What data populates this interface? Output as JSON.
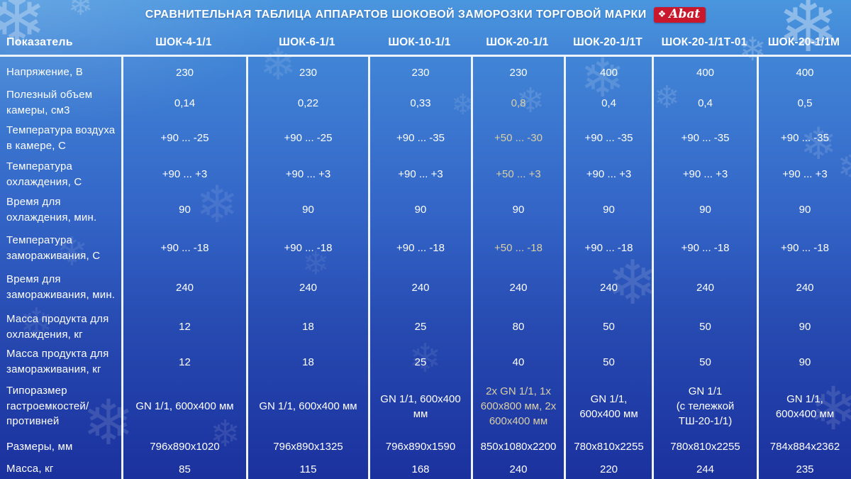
{
  "title": "СРАВНИТЕЛЬНАЯ ТАБЛИЦА АППАРАТОВ ШОКОВОЙ ЗАМОРОЗКИ ТОРГОВОЙ МАРКИ",
  "brand": {
    "label": "Abat",
    "mark_glyph": "❖"
  },
  "decor": {
    "snowflake_glyph": "❄"
  },
  "colors": {
    "accent_value": "#d9cfa6",
    "value_text": "#ffffff",
    "logo_red": "#c9182b",
    "grid_line": "#edf3fb",
    "bg_top": "#4a96de",
    "bg_bottom": "#1b319e"
  },
  "table": {
    "corner_label": "Показатель",
    "columns": [
      "ШОК-4-1/1",
      "ШОК-6-1/1",
      "ШОК-10-1/1",
      "ШОК-20-1/1",
      "ШОК-20-1/1Т",
      "ШОК-20-1/1Т-01",
      "ШОК-20-1/1М"
    ],
    "rows": [
      {
        "label": "Напряжение, В",
        "values": [
          "230",
          "230",
          "230",
          "230",
          "400",
          "400",
          "400"
        ],
        "accent_cols": []
      },
      {
        "label": "Полезный объем камеры, см3",
        "values": [
          "0,14",
          "0,22",
          "0,33",
          "0,8",
          "0,4",
          "0,4",
          "0,5"
        ],
        "accent_cols": [
          3
        ]
      },
      {
        "label": "Температура воздуха в камере, С",
        "values": [
          "+90 ... -25",
          "+90 ... -25",
          "+90 ... -35",
          "+50 ... -30",
          "+90 ... -35",
          "+90 ... -35",
          "+90 ... -35"
        ],
        "accent_cols": [
          3
        ]
      },
      {
        "label": "Температура охлаждения, С",
        "values": [
          "+90 ... +3",
          "+90 ... +3",
          "+90 ... +3",
          "+50 ... +3",
          "+90 ... +3",
          "+90 ... +3",
          "+90 ... +3"
        ],
        "accent_cols": [
          3
        ]
      },
      {
        "label": "Время для охлаждения, мин.",
        "values": [
          "90",
          "90",
          "90",
          "90",
          "90",
          "90",
          "90"
        ],
        "accent_cols": []
      },
      {
        "label": "Температура замораживания, С",
        "values": [
          "+90 ... -18",
          "+90 ... -18",
          "+90 ... -18",
          "+50 ... -18",
          "+90 ... -18",
          "+90 ... -18",
          "+90 ... -18"
        ],
        "accent_cols": [
          3
        ]
      },
      {
        "label": "Время для замораживания, мин.",
        "values": [
          "240",
          "240",
          "240",
          "240",
          "240",
          "240",
          "240"
        ],
        "accent_cols": []
      },
      {
        "label": "Масса продукта для охлаждения, кг",
        "values": [
          "12",
          "18",
          "25",
          "80",
          "50",
          "50",
          "90"
        ],
        "accent_cols": []
      },
      {
        "label": "Масса продукта для замораживания, кг",
        "values": [
          "12",
          "18",
          "25",
          "40",
          "50",
          "50",
          "90"
        ],
        "accent_cols": []
      },
      {
        "label": "Типоразмер гастроемкостей/ противней",
        "values": [
          "GN 1/1, 600х400 мм",
          "GN 1/1, 600х400 мм",
          "GN 1/1, 600х400 мм",
          "2х GN 1/1, 1х\n600х800 мм, 2х\n600х400 мм",
          "GN 1/1,\n600х400 мм",
          "GN 1/1\n(с тележкой\nТШ-20-1/1)",
          "GN 1/1,\n600х400 мм"
        ],
        "accent_cols": [
          3
        ]
      },
      {
        "label": "Размеры, мм",
        "values": [
          "796х890х1020",
          "796х890х1325",
          "796х890х1590",
          "850х1080х2200",
          "780х810х2255",
          "780х810х2255",
          "784х884х2362"
        ],
        "accent_cols": []
      },
      {
        "label": "Масса, кг",
        "values": [
          "85",
          "115",
          "168",
          "240",
          "220",
          "244",
          "235"
        ],
        "accent_cols": []
      }
    ]
  },
  "chart_data": {
    "type": "table",
    "title": "СРАВНИТЕЛЬНАЯ ТАБЛИЦА АППАРАТОВ ШОКОВОЙ ЗАМОРОЗКИ ТОРГОВОЙ МАРКИ Abat",
    "columns": [
      "Показатель",
      "ШОК-4-1/1",
      "ШОК-6-1/1",
      "ШОК-10-1/1",
      "ШОК-20-1/1",
      "ШОК-20-1/1Т",
      "ШОК-20-1/1Т-01",
      "ШОК-20-1/1М"
    ],
    "rows": [
      [
        "Напряжение, В",
        "230",
        "230",
        "230",
        "230",
        "400",
        "400",
        "400"
      ],
      [
        "Полезный объем камеры, см3",
        "0,14",
        "0,22",
        "0,33",
        "0,8",
        "0,4",
        "0,4",
        "0,5"
      ],
      [
        "Температура воздуха в камере, С",
        "+90 ... -25",
        "+90 ... -25",
        "+90 ... -35",
        "+50 ... -30",
        "+90 ... -35",
        "+90 ... -35",
        "+90 ... -35"
      ],
      [
        "Температура охлаждения, С",
        "+90 ... +3",
        "+90 ... +3",
        "+90 ... +3",
        "+50 ... +3",
        "+90 ... +3",
        "+90 ... +3",
        "+90 ... +3"
      ],
      [
        "Время для охлаждения, мин.",
        "90",
        "90",
        "90",
        "90",
        "90",
        "90",
        "90"
      ],
      [
        "Температура замораживания, С",
        "+90 ... -18",
        "+90 ... -18",
        "+90 ... -18",
        "+50 ... -18",
        "+90 ... -18",
        "+90 ... -18",
        "+90 ... -18"
      ],
      [
        "Время для замораживания, мин.",
        "240",
        "240",
        "240",
        "240",
        "240",
        "240",
        "240"
      ],
      [
        "Масса продукта для охлаждения, кг",
        "12",
        "18",
        "25",
        "80",
        "50",
        "50",
        "90"
      ],
      [
        "Масса продукта для замораживания, кг",
        "12",
        "18",
        "25",
        "40",
        "50",
        "50",
        "90"
      ],
      [
        "Типоразмер гастроемкостей/ противней",
        "GN 1/1, 600х400 мм",
        "GN 1/1, 600х400 мм",
        "GN 1/1, 600х400 мм",
        "2х GN 1/1, 1х 600х800 мм, 2х 600х400 мм",
        "GN 1/1, 600х400 мм",
        "GN 1/1 (с тележкой ТШ-20-1/1)",
        "GN 1/1, 600х400 мм"
      ],
      [
        "Размеры, мм",
        "796х890х1020",
        "796х890х1325",
        "796х890х1590",
        "850х1080х2200",
        "780х810х2255",
        "780х810х2255",
        "784х884х2362"
      ],
      [
        "Масса, кг",
        "85",
        "115",
        "168",
        "240",
        "220",
        "244",
        "235"
      ]
    ]
  }
}
